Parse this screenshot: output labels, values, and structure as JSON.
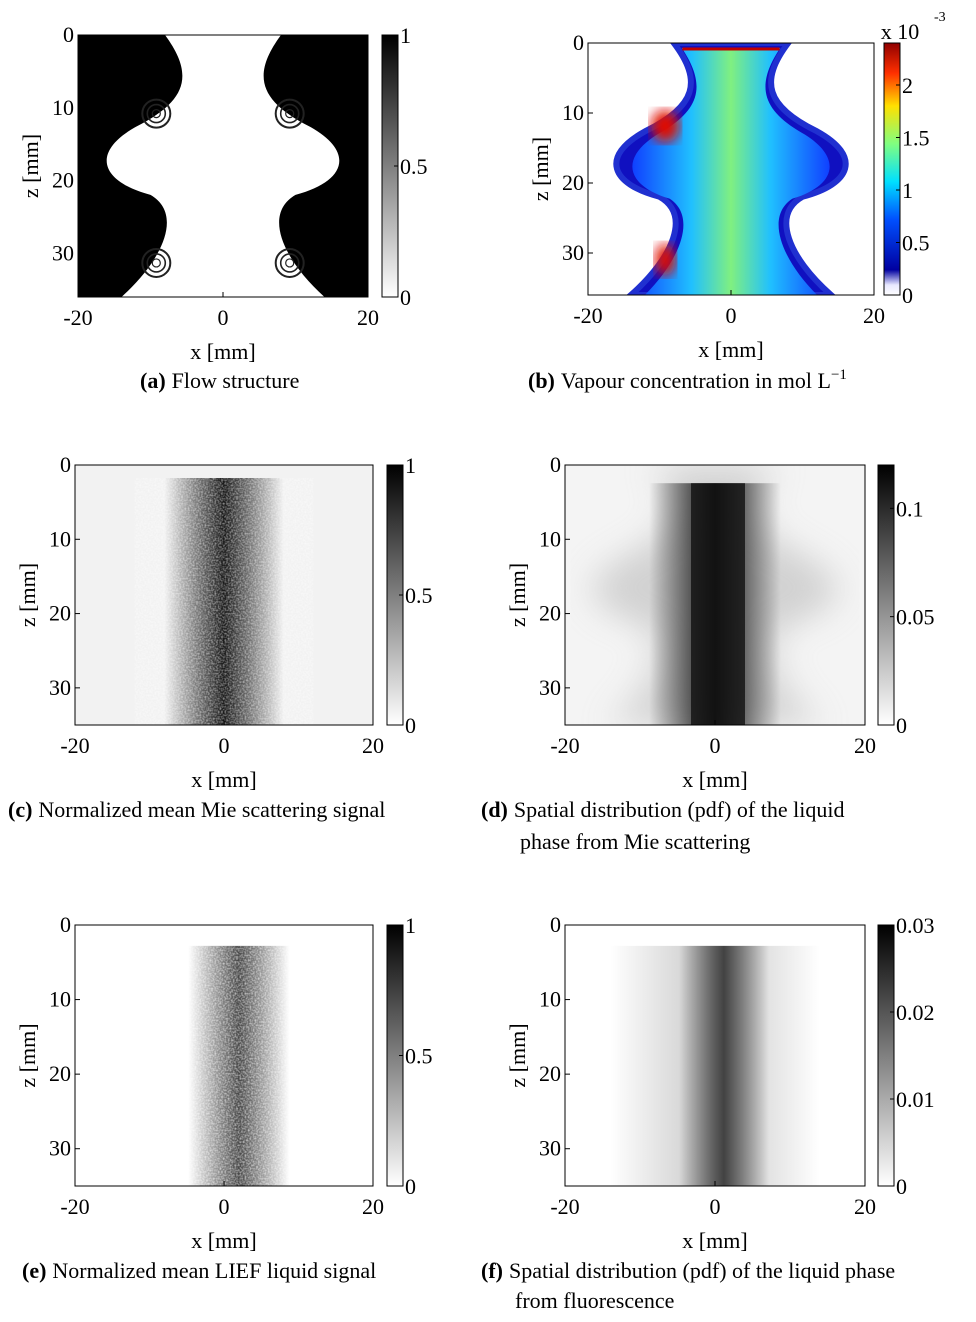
{
  "figure": {
    "panels": [
      {
        "label": "(a)",
        "caption": [
          "Flow structure"
        ],
        "xlabel": "x [mm]",
        "ylabel": "z [mm]",
        "xlim": [
          -20,
          20
        ],
        "ylim": [
          0,
          36
        ],
        "xticks": [
          -20,
          0,
          20
        ],
        "yticks": [
          0,
          10,
          20,
          30
        ],
        "colorbar": {
          "lim": [
            0,
            1
          ],
          "ticks": [
            0,
            0.5,
            1
          ]
        }
      },
      {
        "label": "(b)",
        "caption": [
          "Vapour concentration in mol L"
        ],
        "caption_superscript": "−1",
        "xlabel": "x [mm]",
        "ylabel": "z [mm]",
        "xlim": [
          -20,
          20
        ],
        "ylim": [
          0,
          36
        ],
        "xticks": [
          -20,
          0,
          20
        ],
        "yticks": [
          0,
          10,
          20,
          30
        ],
        "colorbar": {
          "lim": [
            0,
            2.4
          ],
          "ticks": [
            0,
            0.5,
            1,
            1.5,
            2
          ],
          "multiplier": "x 10",
          "multiplier_exponent": "-3"
        }
      },
      {
        "label": "(c)",
        "caption": [
          "Normalized mean Mie scattering signal"
        ],
        "xlabel": "x [mm]",
        "ylabel": "z [mm]",
        "xlim": [
          -20,
          20
        ],
        "ylim": [
          0,
          35
        ],
        "xticks": [
          -20,
          0,
          20
        ],
        "yticks": [
          0,
          10,
          20,
          30
        ],
        "colorbar": {
          "lim": [
            0,
            1
          ],
          "ticks": [
            0,
            0.5,
            1
          ]
        }
      },
      {
        "label": "(d)",
        "caption": [
          "Spatial distribution (pdf) of the liquid",
          "phase from Mie scattering"
        ],
        "xlabel": "x [mm]",
        "ylabel": "z [mm]",
        "xlim": [
          -20,
          20
        ],
        "ylim": [
          0,
          35
        ],
        "xticks": [
          -20,
          0,
          20
        ],
        "yticks": [
          0,
          10,
          20,
          30
        ],
        "colorbar": {
          "lim": [
            0,
            0.12
          ],
          "ticks": [
            0,
            0.05,
            0.1
          ]
        }
      },
      {
        "label": "(e)",
        "caption": [
          "Normalized mean LIEF liquid signal"
        ],
        "xlabel": "x [mm]",
        "ylabel": "z [mm]",
        "xlim": [
          -20,
          20
        ],
        "ylim": [
          0,
          35
        ],
        "xticks": [
          -20,
          0,
          20
        ],
        "yticks": [
          0,
          10,
          20,
          30
        ],
        "colorbar": {
          "lim": [
            0,
            1
          ],
          "ticks": [
            0,
            0.5,
            1
          ]
        }
      },
      {
        "label": "(f)",
        "caption": [
          "Spatial distribution (pdf) of the liquid phase",
          "from fluorescence"
        ],
        "xlabel": "x [mm]",
        "ylabel": "z [mm]",
        "xlim": [
          -20,
          20
        ],
        "ylim": [
          0,
          35
        ],
        "xticks": [
          -20,
          0,
          20
        ],
        "yticks": [
          0,
          10,
          20,
          30
        ],
        "colorbar": {
          "lim": [
            0,
            0.03
          ],
          "ticks": [
            0,
            0.01,
            0.02,
            0.03
          ]
        }
      }
    ]
  }
}
